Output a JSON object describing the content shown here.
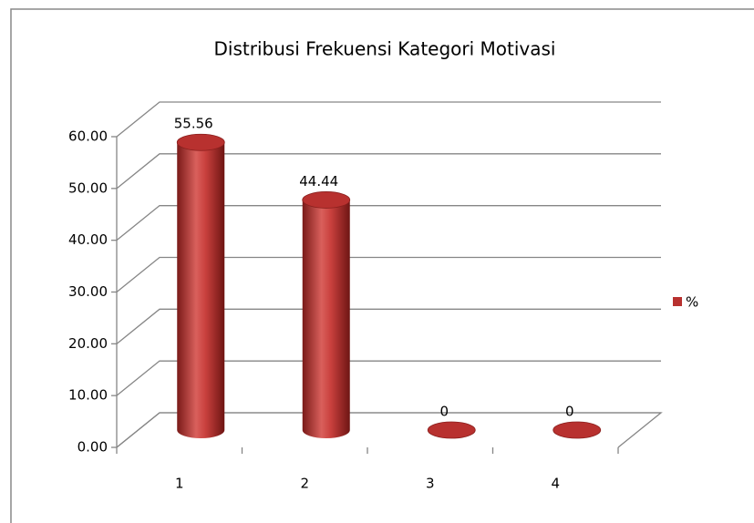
{
  "chart_data": {
    "type": "bar",
    "title": "Distribusi Frekuensi Kategori Motivasi",
    "categories": [
      "1",
      "2",
      "3",
      "4"
    ],
    "series": [
      {
        "name": "%",
        "color": "#b8312f",
        "values": [
          55.56,
          44.44,
          0,
          0
        ]
      }
    ],
    "ylim": [
      0,
      60
    ],
    "yticks": [
      {
        "value": 0,
        "label": "0.00"
      },
      {
        "value": 10,
        "label": "10.00"
      },
      {
        "value": 20,
        "label": "20.00"
      },
      {
        "value": 30,
        "label": "30.00"
      },
      {
        "value": 40,
        "label": "40.00"
      },
      {
        "value": 50,
        "label": "50.00"
      },
      {
        "value": 60,
        "label": "60.00"
      }
    ],
    "grid": true,
    "legend": "right"
  }
}
